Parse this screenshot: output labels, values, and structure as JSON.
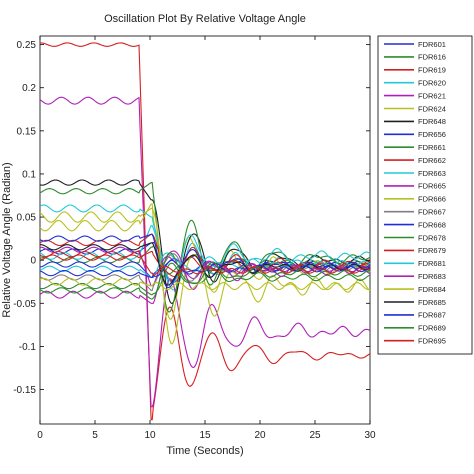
{
  "chart_data": {
    "type": "line",
    "title": "Oscillation Plot By Relative Voltage Angle",
    "xlabel": "Time (Seconds)",
    "ylabel": "Relative Voltage Angle (Radian)",
    "xlim": [
      0,
      30
    ],
    "ylim": [
      -0.19,
      0.26
    ],
    "xticks": [
      0,
      5,
      10,
      15,
      20,
      25,
      30
    ],
    "yticks": [
      -0.15,
      -0.1,
      -0.05,
      0,
      0.05,
      0.1,
      0.15,
      0.2,
      0.25
    ],
    "ytick_labels": [
      "-0.15",
      "-0.1",
      "-0.05",
      "0",
      "0.05",
      "0.1",
      "0.15",
      "0.2",
      "0.25"
    ],
    "grid": false,
    "legend_position": "right",
    "series": [
      {
        "name": "FDR601",
        "color": "#1f2fd6",
        "pre": 0.01,
        "final": -0.005,
        "peak": 0.02,
        "amp": 0.003
      },
      {
        "name": "FDR616",
        "color": "#2e8b2e",
        "pre": 0.0,
        "final": -0.003,
        "peak": 0.015,
        "amp": 0.003
      },
      {
        "name": "FDR619",
        "color": "#d62020",
        "pre": 0.25,
        "final": -0.11,
        "peak": -0.185,
        "amp": 0.002
      },
      {
        "name": "FDR620",
        "color": "#22c8d8",
        "pre": 0.005,
        "final": -0.005,
        "peak": 0.04,
        "amp": 0.004
      },
      {
        "name": "FDR621",
        "color": "#b020b8",
        "pre": 0.185,
        "final": -0.083,
        "peak": -0.17,
        "amp": 0.004
      },
      {
        "name": "FDR624",
        "color": "#b8c020",
        "pre": 0.04,
        "final": -0.01,
        "peak": 0.065,
        "amp": 0.006
      },
      {
        "name": "FDR648",
        "color": "#202020",
        "pre": 0.09,
        "final": 0.0,
        "peak": 0.07,
        "amp": 0.003
      },
      {
        "name": "FDR656",
        "color": "#1f2fd6",
        "pre": -0.005,
        "final": -0.008,
        "peak": -0.02,
        "amp": 0.003
      },
      {
        "name": "FDR661",
        "color": "#2e8b2e",
        "pre": 0.08,
        "final": 0.002,
        "peak": 0.09,
        "amp": 0.003
      },
      {
        "name": "FDR662",
        "color": "#d62020",
        "pre": 0.02,
        "final": -0.004,
        "peak": 0.03,
        "amp": 0.003
      },
      {
        "name": "FDR663",
        "color": "#22c8d8",
        "pre": 0.06,
        "final": 0.005,
        "peak": 0.05,
        "amp": 0.004
      },
      {
        "name": "FDR665",
        "color": "#b020b8",
        "pre": 0.012,
        "final": -0.01,
        "peak": -0.03,
        "amp": 0.003
      },
      {
        "name": "FDR666",
        "color": "#b8c020",
        "pre": 0.05,
        "final": -0.03,
        "peak": 0.06,
        "amp": 0.006
      },
      {
        "name": "FDR667",
        "color": "#808080",
        "pre": -0.02,
        "final": -0.01,
        "peak": -0.035,
        "amp": 0.003
      },
      {
        "name": "FDR668",
        "color": "#1f2fd6",
        "pre": 0.025,
        "final": -0.006,
        "peak": 0.03,
        "amp": 0.003
      },
      {
        "name": "FDR678",
        "color": "#2e8b2e",
        "pre": -0.03,
        "final": -0.02,
        "peak": -0.04,
        "amp": 0.003
      },
      {
        "name": "FDR679",
        "color": "#d62020",
        "pre": 0.003,
        "final": -0.007,
        "peak": 0.01,
        "amp": 0.003
      },
      {
        "name": "FDR681",
        "color": "#22c8d8",
        "pre": -0.01,
        "final": -0.004,
        "peak": -0.02,
        "amp": 0.003
      },
      {
        "name": "FDR683",
        "color": "#b020b8",
        "pre": -0.04,
        "final": -0.012,
        "peak": -0.05,
        "amp": 0.004
      },
      {
        "name": "FDR684",
        "color": "#b8c020",
        "pre": -0.025,
        "final": -0.03,
        "peak": -0.03,
        "amp": 0.004
      },
      {
        "name": "FDR685",
        "color": "#202020",
        "pre": 0.015,
        "final": -0.008,
        "peak": 0.02,
        "amp": 0.003
      },
      {
        "name": "FDR687",
        "color": "#1f2fd6",
        "pre": -0.015,
        "final": -0.01,
        "peak": -0.02,
        "amp": 0.003
      },
      {
        "name": "FDR689",
        "color": "#2e8b2e",
        "pre": -0.035,
        "final": -0.015,
        "peak": -0.045,
        "amp": 0.003
      },
      {
        "name": "FDR695",
        "color": "#d62020",
        "pre": 0.007,
        "final": -0.012,
        "peak": -0.015,
        "amp": 0.003
      }
    ]
  }
}
